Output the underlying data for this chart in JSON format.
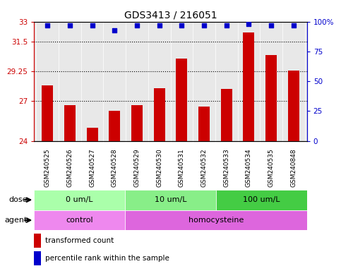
{
  "title": "GDS3413 / 216051",
  "samples": [
    "GSM240525",
    "GSM240526",
    "GSM240527",
    "GSM240528",
    "GSM240529",
    "GSM240530",
    "GSM240531",
    "GSM240532",
    "GSM240533",
    "GSM240534",
    "GSM240535",
    "GSM240848"
  ],
  "transformed_count": [
    28.2,
    26.7,
    25.0,
    26.3,
    26.7,
    28.0,
    30.2,
    26.6,
    27.9,
    32.2,
    30.5,
    29.3
  ],
  "percentile_rank": [
    97,
    97,
    97,
    93,
    97,
    97,
    97,
    97,
    97,
    98,
    97,
    97
  ],
  "ylim_left": [
    24,
    33
  ],
  "yticks_left": [
    24,
    27,
    29.25,
    31.5,
    33
  ],
  "ytick_labels_left": [
    "24",
    "27",
    "29.25",
    "31.5",
    "33"
  ],
  "ylim_right": [
    0,
    100
  ],
  "yticks_right": [
    0,
    25,
    50,
    75,
    100
  ],
  "ytick_labels_right": [
    "0",
    "25",
    "50",
    "75",
    "100%"
  ],
  "bar_color": "#cc0000",
  "dot_color": "#0000cc",
  "grid_color": "#000000",
  "bg_plot": "#e8e8e8",
  "bg_labels": "#c8c8c8",
  "dose_groups": [
    {
      "label": "0 um/L",
      "start": 0,
      "end": 4,
      "color": "#aaffaa"
    },
    {
      "label": "10 um/L",
      "start": 4,
      "end": 8,
      "color": "#88ee88"
    },
    {
      "label": "100 um/L",
      "start": 8,
      "end": 12,
      "color": "#44cc44"
    }
  ],
  "agent_groups": [
    {
      "label": "control",
      "start": 0,
      "end": 4,
      "color": "#ee88ee"
    },
    {
      "label": "homocysteine",
      "start": 4,
      "end": 12,
      "color": "#dd66dd"
    }
  ],
  "legend_items": [
    {
      "label": "transformed count",
      "color": "#cc0000",
      "marker": "s"
    },
    {
      "label": "percentile rank within the sample",
      "color": "#0000cc",
      "marker": "s"
    }
  ],
  "xlabel_dose": "dose",
  "xlabel_agent": "agent"
}
